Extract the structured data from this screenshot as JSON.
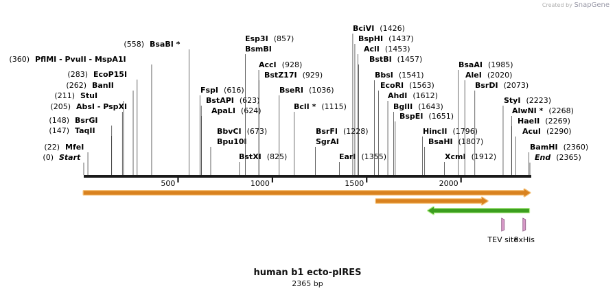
{
  "watermark": {
    "prefix": "Created by",
    "brand": "SnapGene"
  },
  "title": "human b1 ecto-pIRES",
  "subtitle": "2365 bp",
  "sequence_length": 2365,
  "ruler_ticks": [
    500,
    1000,
    1500,
    2000
  ],
  "enzymes": [
    {
      "lines": [
        {
          "pos": "(0)",
          "name": "Start"
        }
      ],
      "site": 0,
      "italic": true
    },
    {
      "lines": [
        {
          "pos": "(22)",
          "name": "MfeI"
        }
      ],
      "site": 22
    },
    {
      "lines": [
        {
          "pos": "(147)",
          "name": "TaqII"
        }
      ],
      "site": 147
    },
    {
      "lines": [
        {
          "pos": "(148)",
          "name": "BsrGI"
        }
      ],
      "site": 148
    },
    {
      "lines": [
        {
          "pos": "(205)",
          "name": "AbsI  -  PspXI"
        }
      ],
      "site": 205
    },
    {
      "lines": [
        {
          "pos": "(211)",
          "name": "StuI"
        }
      ],
      "site": 211
    },
    {
      "lines": [
        {
          "pos": "(262)",
          "name": "BanII"
        }
      ],
      "site": 262
    },
    {
      "lines": [
        {
          "pos": "(283)",
          "name": "EcoP15I"
        }
      ],
      "site": 283
    },
    {
      "lines": [
        {
          "pos": "(360)",
          "name": "PflMI  -  PvuII   -  MspA1I"
        }
      ],
      "site": 360
    },
    {
      "lines": [
        {
          "pos": "(558)",
          "name": "BsaBI *"
        }
      ],
      "site": 558
    },
    {
      "lines": [
        {
          "name": "FspI",
          "pos": "(616)"
        }
      ],
      "site": 616
    },
    {
      "lines": [
        {
          "name": "BstAPI",
          "pos": "(623)"
        }
      ],
      "site": 623
    },
    {
      "lines": [
        {
          "name": "ApaLI",
          "pos": "(624)"
        }
      ],
      "site": 624
    },
    {
      "lines": [
        {
          "name": "BbvCI",
          "pos": "(673)"
        },
        {
          "name": "Bpu10I",
          "pos": ""
        }
      ],
      "site": 673
    },
    {
      "lines": [
        {
          "name": "Esp3I",
          "pos": "(857)"
        },
        {
          "name": "BsmBI",
          "pos": ""
        }
      ],
      "site": 857
    },
    {
      "lines": [
        {
          "name": "BstXI",
          "pos": "(825)"
        }
      ],
      "site": 825
    },
    {
      "lines": [
        {
          "name": "AccI",
          "pos": "(928)"
        }
      ],
      "site": 928
    },
    {
      "lines": [
        {
          "name": "BstZ17I",
          "pos": "(929)"
        }
      ],
      "site": 929
    },
    {
      "lines": [
        {
          "name": "BseRI",
          "pos": "(1036)"
        }
      ],
      "site": 1036
    },
    {
      "lines": [
        {
          "name": "BclI *",
          "pos": "(1115)"
        }
      ],
      "site": 1115
    },
    {
      "lines": [
        {
          "name": "BsrFI",
          "pos": "(1228)"
        },
        {
          "name": "SgrAI",
          "pos": ""
        }
      ],
      "site": 1228
    },
    {
      "lines": [
        {
          "name": "EarI",
          "pos": "(1355)"
        }
      ],
      "site": 1355
    },
    {
      "lines": [
        {
          "name": "BciVI",
          "pos": "(1426)"
        }
      ],
      "site": 1426
    },
    {
      "lines": [
        {
          "name": "BspHI",
          "pos": "(1437)"
        }
      ],
      "site": 1437
    },
    {
      "lines": [
        {
          "name": "AclI",
          "pos": "(1453)"
        }
      ],
      "site": 1453
    },
    {
      "lines": [
        {
          "name": "BstBI",
          "pos": "(1457)"
        }
      ],
      "site": 1457
    },
    {
      "lines": [
        {
          "name": "BbsI",
          "pos": "(1541)"
        }
      ],
      "site": 1541
    },
    {
      "lines": [
        {
          "name": "EcoRI",
          "pos": "(1563)"
        }
      ],
      "site": 1563
    },
    {
      "lines": [
        {
          "name": "AhdI",
          "pos": "(1612)"
        }
      ],
      "site": 1612
    },
    {
      "lines": [
        {
          "name": "BglII",
          "pos": "(1643)"
        }
      ],
      "site": 1643
    },
    {
      "lines": [
        {
          "name": "BspEI",
          "pos": "(1651)"
        }
      ],
      "site": 1651
    },
    {
      "lines": [
        {
          "name": "HincII",
          "pos": "(1796)"
        }
      ],
      "site": 1796
    },
    {
      "lines": [
        {
          "name": "BsaHI",
          "pos": "(1807)"
        }
      ],
      "site": 1807
    },
    {
      "lines": [
        {
          "name": "XcmI",
          "pos": "(1912)"
        }
      ],
      "site": 1912
    },
    {
      "lines": [
        {
          "name": "BsaAI",
          "pos": "(1985)"
        }
      ],
      "site": 1985
    },
    {
      "lines": [
        {
          "name": "AleI",
          "pos": "(2020)"
        }
      ],
      "site": 2020
    },
    {
      "lines": [
        {
          "name": "BsrDI",
          "pos": "(2073)"
        }
      ],
      "site": 2073
    },
    {
      "lines": [
        {
          "name": "StyI",
          "pos": "(2223)"
        }
      ],
      "site": 2223
    },
    {
      "lines": [
        {
          "name": "AlwNI *",
          "pos": "(2268)"
        }
      ],
      "site": 2268
    },
    {
      "lines": [
        {
          "name": "HaeII",
          "pos": "(2269)"
        }
      ],
      "site": 2269
    },
    {
      "lines": [
        {
          "name": "AcuI",
          "pos": "(2290)"
        }
      ],
      "site": 2290
    },
    {
      "lines": [
        {
          "name": "BamHI",
          "pos": "(2360)"
        }
      ],
      "site": 2360
    },
    {
      "lines": [
        {
          "name": "End",
          "pos": "(2365)"
        }
      ],
      "site": 2365,
      "italic": true
    }
  ],
  "features": [
    {
      "start": 0,
      "end": 2365,
      "direction": "forward",
      "color": "#f5c27a",
      "edge": "#d9821f"
    },
    {
      "start": 1550,
      "end": 2140,
      "direction": "forward",
      "color": "#f5c27a",
      "edge": "#d9821f"
    },
    {
      "start": 1825,
      "end": 2360,
      "direction": "reverse",
      "color": "#b4f08c",
      "edge": "#3b9e1e"
    }
  ],
  "small_features": [
    {
      "label": "TEV site",
      "site": 2222
    },
    {
      "label": "8xHis",
      "site": 2335
    }
  ]
}
